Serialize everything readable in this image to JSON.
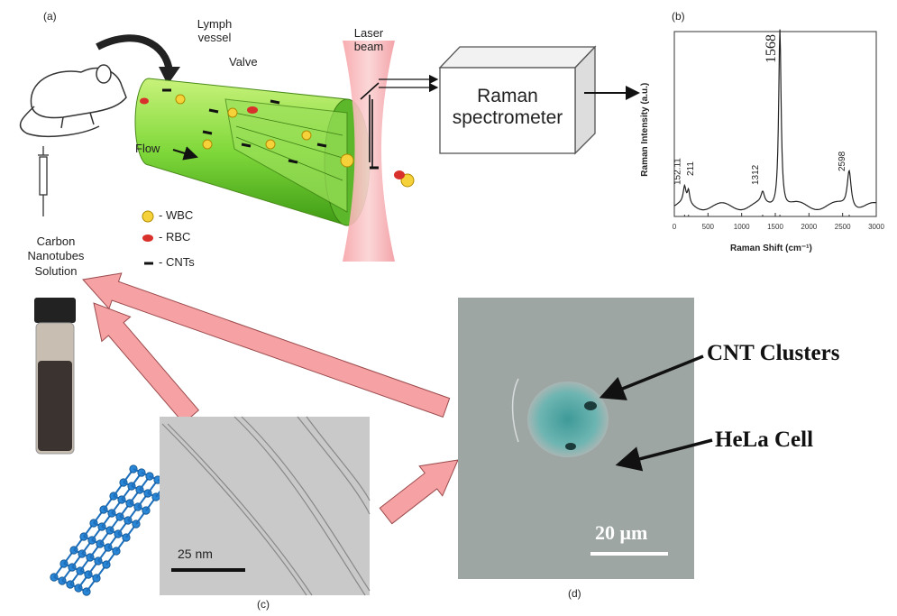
{
  "panel_a": {
    "label": "(a)",
    "lymph_vessel": "Lymph vessel",
    "valve": "Valve",
    "laser_beam": "Laser beam",
    "spectrometer": "Raman spectrometer",
    "flow": "Flow",
    "legend": [
      "- WBC",
      "- RBC",
      "- CNTs"
    ],
    "solution": "Carbon Nanotubes Solution"
  },
  "panel_b": {
    "label": "(b)",
    "x_label": "Raman Shift (cm⁻¹)",
    "y_label": "Raman Intensity (a.u.)",
    "xlim": [
      0,
      3000
    ],
    "xticks": [
      0,
      500,
      1000,
      1500,
      2000,
      2500,
      3000
    ],
    "peaks": [
      152.11,
      211,
      1312,
      1568,
      2598
    ]
  },
  "panel_c": {
    "label": "(c)",
    "scale_bar": "25 nm"
  },
  "panel_d": {
    "label": "(d)",
    "clusters": "CNT Clusters",
    "cell": "HeLa Cell",
    "scale_bar": "20 μm"
  }
}
